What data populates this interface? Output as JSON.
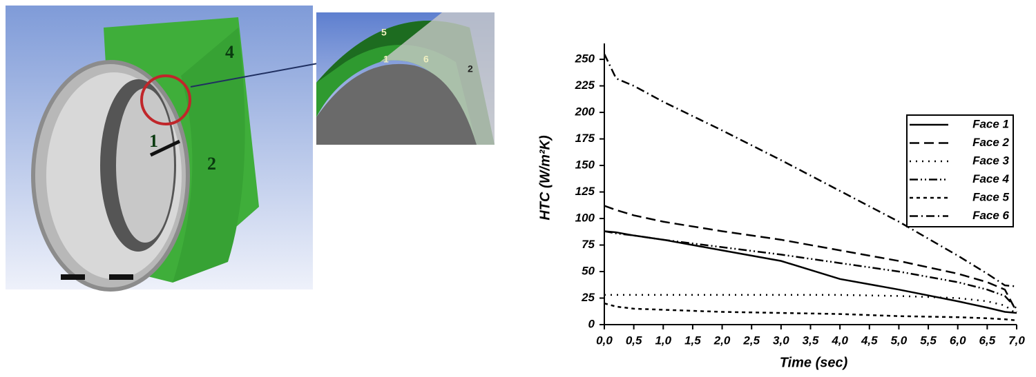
{
  "image": {
    "labels": [
      {
        "text": "4"
      },
      {
        "text": "1"
      },
      {
        "text": "2"
      },
      {
        "text": "5"
      },
      {
        "text": "1"
      },
      {
        "text": "6"
      },
      {
        "text": "2"
      }
    ]
  },
  "chart_data": {
    "type": "line",
    "xlabel": "Time (sec)",
    "ylabel": "HTC (W/m²K)",
    "x": [
      0,
      0.2,
      0.5,
      1,
      2,
      3,
      4,
      5,
      6,
      6.5,
      6.8,
      7
    ],
    "series": [
      {
        "name": "Face 1",
        "color": "#000000",
        "dash": "solid",
        "values": [
          88,
          87,
          84,
          80,
          70,
          60,
          43,
          33,
          22,
          16,
          12,
          11
        ]
      },
      {
        "name": "Face 2",
        "color": "#000000",
        "dash": "dash",
        "values": [
          112,
          108,
          103,
          97,
          88,
          80,
          70,
          60,
          48,
          40,
          33,
          12
        ]
      },
      {
        "name": "Face 3",
        "color": "#000000",
        "dash": "dot",
        "values": [
          28,
          28,
          28,
          28,
          28,
          28,
          28,
          27,
          25,
          22,
          18,
          10
        ]
      },
      {
        "name": "Face 4",
        "color": "#000000",
        "dash": "dash-dot-dot",
        "values": [
          88,
          86,
          84,
          80,
          73,
          66,
          58,
          50,
          40,
          33,
          27,
          15
        ]
      },
      {
        "name": "Face 5",
        "color": "#000000",
        "dash": "short-dash",
        "values": [
          20,
          17,
          15,
          14,
          12,
          11,
          10,
          8,
          7,
          6,
          5,
          4
        ]
      },
      {
        "name": "Face 6",
        "color": "#000000",
        "dash": "dash-dot",
        "values": [
          255,
          232,
          225,
          210,
          183,
          155,
          126,
          97,
          65,
          48,
          37,
          36
        ]
      }
    ],
    "xlim": [
      0,
      7
    ],
    "xticks": [
      {
        "value": 0,
        "label": "0,0"
      },
      {
        "value": 0.5,
        "label": "0,5"
      },
      {
        "value": 1,
        "label": "1,0"
      },
      {
        "value": 1.5,
        "label": "1,5"
      },
      {
        "value": 2,
        "label": "2,0"
      },
      {
        "value": 2.5,
        "label": "2,5"
      },
      {
        "value": 3,
        "label": "3,0"
      },
      {
        "value": 3.5,
        "label": "3,5"
      },
      {
        "value": 4,
        "label": "4,0"
      },
      {
        "value": 4.5,
        "label": "4,5"
      },
      {
        "value": 5,
        "label": "5,0"
      },
      {
        "value": 5.5,
        "label": "5,5"
      },
      {
        "value": 6,
        "label": "6,0"
      },
      {
        "value": 6.5,
        "label": "6,5"
      },
      {
        "value": 7,
        "label": "7,0"
      }
    ],
    "ylim": [
      0,
      265
    ],
    "yticks": [
      0,
      25,
      50,
      75,
      100,
      125,
      150,
      175,
      200,
      225,
      250
    ],
    "legend": "right"
  }
}
